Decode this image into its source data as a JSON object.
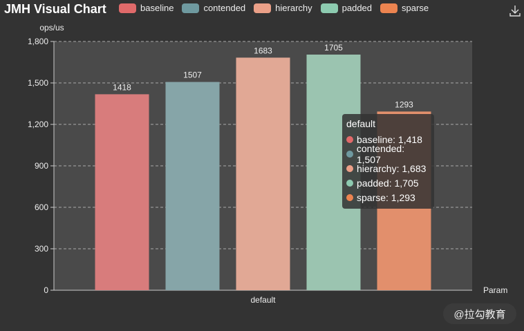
{
  "title": "JMH Visual Chart",
  "icons": {
    "download": "download-icon"
  },
  "watermark": "@拉勾教育",
  "legend": [
    {
      "name": "baseline",
      "color": "#e06a6a"
    },
    {
      "name": "contended",
      "color": "#6f9aa0"
    },
    {
      "name": "hierarchy",
      "color": "#eba088"
    },
    {
      "name": "padded",
      "color": "#8dcbb0"
    },
    {
      "name": "sparse",
      "color": "#ec8450"
    }
  ],
  "tooltip": {
    "title": "default",
    "rows": [
      "baseline: 1,418",
      "contended: 1,507",
      "hierarchy: 1,683",
      "padded: 1,705",
      "sparse: 1,293"
    ]
  },
  "chart_data": {
    "type": "bar",
    "title": "JMH Visual Chart",
    "xlabel": "Param",
    "ylabel": "ops/us",
    "categories": [
      "default"
    ],
    "ylim": [
      0,
      1800
    ],
    "yticks": [
      "0",
      "300",
      "600",
      "900",
      "1,200",
      "1,500",
      "1,800"
    ],
    "grid": true,
    "legend_position": "top",
    "series": [
      {
        "name": "baseline",
        "values": [
          1418
        ],
        "color": "#d87c7c"
      },
      {
        "name": "contended",
        "values": [
          1507
        ],
        "color": "#86a5a8"
      },
      {
        "name": "hierarchy",
        "values": [
          1683
        ],
        "color": "#e1a895"
      },
      {
        "name": "padded",
        "values": [
          1705
        ],
        "color": "#9bc4b0"
      },
      {
        "name": "sparse",
        "values": [
          1293
        ],
        "color": "#e28f6c"
      }
    ]
  }
}
